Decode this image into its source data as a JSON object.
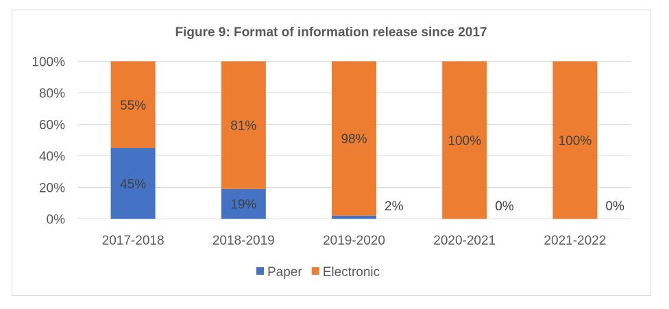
{
  "chart_data": {
    "type": "bar",
    "stacked": true,
    "percent_stacked": true,
    "title": "Figure 9: Format of information release since 2017",
    "categories": [
      "2017-2018",
      "2018-2019",
      "2019-2020",
      "2020-2021",
      "2021-2022"
    ],
    "series": [
      {
        "name": "Paper",
        "values": [
          45,
          19,
          2,
          0,
          0
        ],
        "labels": [
          "45%",
          "19%",
          "2%",
          "0%",
          "0%"
        ],
        "color": "#4472C4"
      },
      {
        "name": "Electronic",
        "values": [
          55,
          81,
          98,
          100,
          100
        ],
        "labels": [
          "55%",
          "81%",
          "98%",
          "100%",
          "100%"
        ],
        "color": "#ED7D31"
      }
    ],
    "yticks": [
      "0%",
      "20%",
      "40%",
      "60%",
      "80%",
      "100%"
    ],
    "ylim": [
      0,
      100
    ],
    "xlabel": "",
    "ylabel": "",
    "grid": true,
    "legend": "bottom"
  }
}
